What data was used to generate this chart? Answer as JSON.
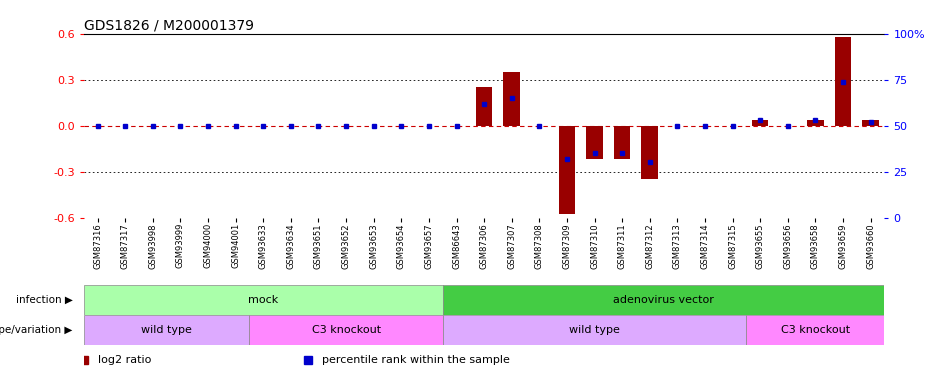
{
  "title": "GDS1826 / M200001379",
  "samples": [
    "GSM87316",
    "GSM87317",
    "GSM93998",
    "GSM93999",
    "GSM94000",
    "GSM94001",
    "GSM93633",
    "GSM93634",
    "GSM93651",
    "GSM93652",
    "GSM93653",
    "GSM93654",
    "GSM93657",
    "GSM86643",
    "GSM87306",
    "GSM87307",
    "GSM87308",
    "GSM87309",
    "GSM87310",
    "GSM87311",
    "GSM87312",
    "GSM87313",
    "GSM87314",
    "GSM87315",
    "GSM93655",
    "GSM93656",
    "GSM93658",
    "GSM93659",
    "GSM93660"
  ],
  "log2_ratio": [
    0.0,
    0.0,
    0.0,
    0.0,
    0.0,
    0.0,
    0.0,
    0.0,
    0.0,
    0.0,
    0.0,
    0.0,
    0.0,
    0.0,
    0.25,
    0.35,
    0.0,
    -0.58,
    -0.22,
    -0.22,
    -0.35,
    0.0,
    0.0,
    0.0,
    0.04,
    0.0,
    0.04,
    0.58,
    0.04
  ],
  "percentile_rank": [
    50,
    50,
    50,
    50,
    50,
    50,
    50,
    50,
    50,
    50,
    50,
    50,
    50,
    50,
    62,
    65,
    50,
    32,
    35,
    35,
    30,
    50,
    50,
    50,
    53,
    50,
    53,
    74,
    52
  ],
  "ylim": [
    -0.6,
    0.6
  ],
  "yticks_left": [
    -0.6,
    -0.3,
    0.0,
    0.3,
    0.6
  ],
  "right_yticks": [
    0,
    25,
    50,
    75,
    100
  ],
  "bar_color": "#990000",
  "percentile_color": "#0000cc",
  "zeroline_color": "#cc0000",
  "infection_groups": [
    {
      "label": "mock",
      "start": 0,
      "end": 12,
      "color": "#aaffaa"
    },
    {
      "label": "adenovirus vector",
      "start": 13,
      "end": 28,
      "color": "#44cc44"
    }
  ],
  "genotype_groups": [
    {
      "label": "wild type",
      "start": 0,
      "end": 5,
      "color": "#ddaaff"
    },
    {
      "label": "C3 knockout",
      "start": 6,
      "end": 12,
      "color": "#ff88ff"
    },
    {
      "label": "wild type",
      "start": 13,
      "end": 23,
      "color": "#ddaaff"
    },
    {
      "label": "C3 knockout",
      "start": 24,
      "end": 28,
      "color": "#ff88ff"
    }
  ],
  "infection_label": "infection",
  "genotype_label": "genotype/variation",
  "legend_items": [
    {
      "label": "log2 ratio",
      "color": "#990000"
    },
    {
      "label": "percentile rank within the sample",
      "color": "#0000cc"
    }
  ]
}
